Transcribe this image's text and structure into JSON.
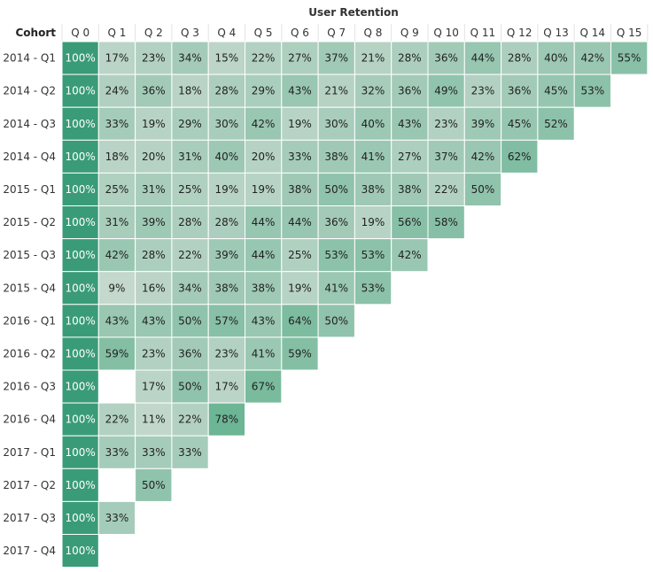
{
  "chart_data": {
    "type": "heatmap",
    "title": "User Retention",
    "row_header": "Cohort",
    "columns": [
      "Q 0",
      "Q 1",
      "Q 2",
      "Q 3",
      "Q 4",
      "Q 5",
      "Q 6",
      "Q 7",
      "Q 8",
      "Q 9",
      "Q 10",
      "Q 11",
      "Q 12",
      "Q 13",
      "Q 14",
      "Q 15"
    ],
    "rows": [
      "2014 - Q1",
      "2014 - Q2",
      "2014 - Q3",
      "2014 - Q4",
      "2015 - Q1",
      "2015 - Q2",
      "2015 - Q3",
      "2015 - Q4",
      "2016 - Q1",
      "2016 - Q2",
      "2016 - Q3",
      "2016 - Q4",
      "2017 - Q1",
      "2017 - Q2",
      "2017 - Q3",
      "2017 - Q4"
    ],
    "values": [
      [
        100,
        17,
        23,
        34,
        15,
        22,
        27,
        37,
        21,
        28,
        36,
        44,
        28,
        40,
        42,
        55
      ],
      [
        100,
        24,
        36,
        18,
        28,
        29,
        43,
        21,
        32,
        36,
        49,
        23,
        36,
        45,
        53
      ],
      [
        100,
        33,
        19,
        29,
        30,
        42,
        19,
        30,
        40,
        43,
        23,
        39,
        45,
        52
      ],
      [
        100,
        18,
        20,
        31,
        40,
        20,
        33,
        38,
        41,
        27,
        37,
        42,
        62
      ],
      [
        100,
        25,
        31,
        25,
        19,
        19,
        38,
        50,
        38,
        38,
        22,
        50
      ],
      [
        100,
        31,
        39,
        28,
        28,
        44,
        44,
        36,
        19,
        56,
        58
      ],
      [
        100,
        42,
        28,
        22,
        39,
        44,
        25,
        53,
        53,
        42
      ],
      [
        100,
        9,
        16,
        34,
        38,
        38,
        19,
        41,
        53
      ],
      [
        100,
        43,
        43,
        50,
        57,
        43,
        64,
        50
      ],
      [
        100,
        59,
        23,
        36,
        23,
        41,
        59
      ],
      [
        100,
        null,
        17,
        50,
        17,
        67
      ],
      [
        100,
        22,
        11,
        22,
        78
      ],
      [
        100,
        33,
        33,
        33
      ],
      [
        100,
        null,
        50
      ],
      [
        100,
        33
      ],
      [
        100
      ]
    ],
    "value_suffix": "%",
    "color_scale": {
      "low": "#c4d8cd",
      "high": "#6cb595",
      "full": "#3a9b78"
    },
    "text_colors": {
      "dark": "#222222",
      "light": "#ffffff"
    },
    "grid_color": "#ffffff"
  }
}
